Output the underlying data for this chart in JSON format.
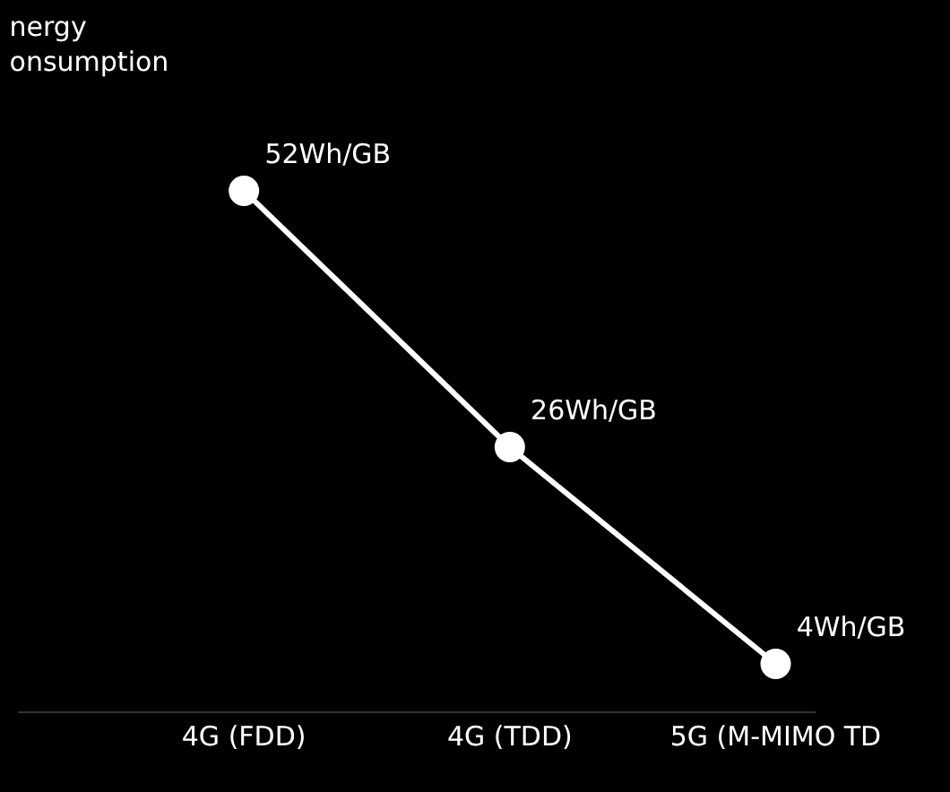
{
  "chart_data": {
    "type": "line",
    "title": "nergy\nonsumption",
    "categories": [
      "4G (FDD)",
      "4G (TDD)",
      "5G (M-MIMO TD"
    ],
    "series": [
      {
        "color": "#ffffff",
        "values": [
          52,
          26,
          4
        ],
        "value_labels": [
          "52Wh/GB",
          "26Wh/GB",
          "4Wh/GB"
        ]
      }
    ],
    "tick_labels": "x",
    "marker": "circle",
    "line_style": "solid"
  }
}
